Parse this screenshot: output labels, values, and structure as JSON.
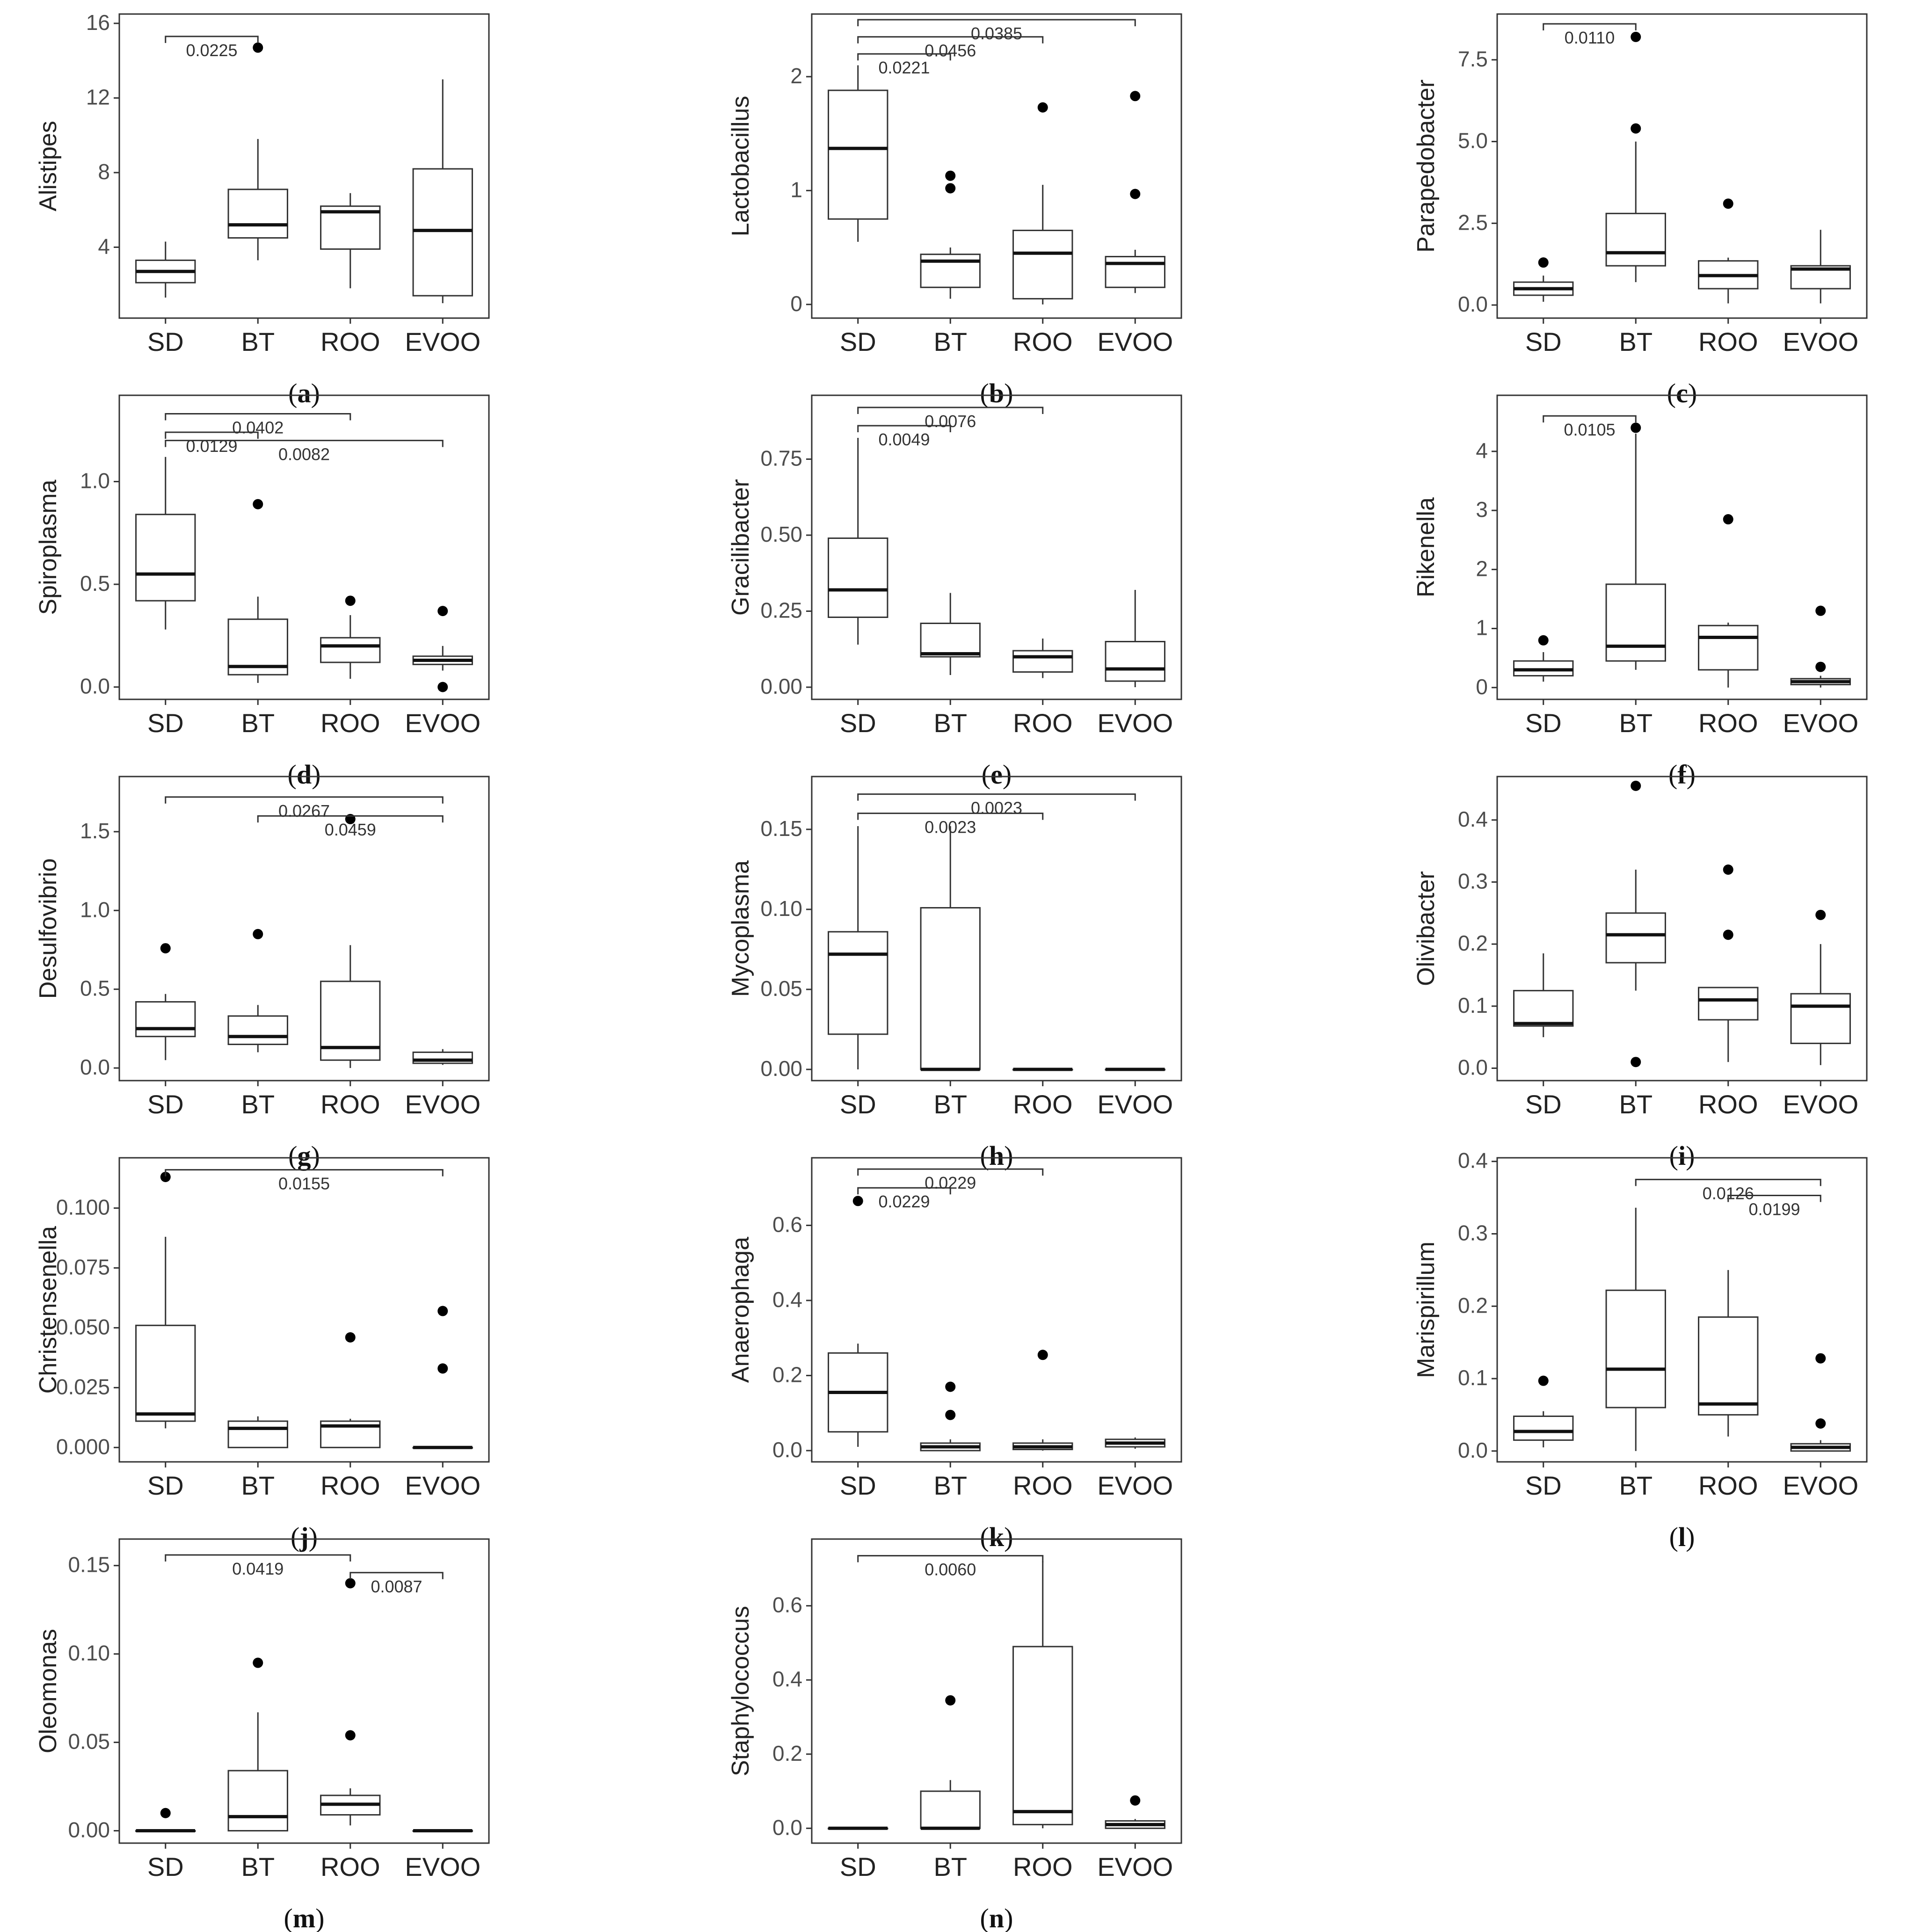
{
  "figure": {
    "categories": [
      "SD",
      "BT",
      "ROO",
      "EVOO"
    ]
  },
  "chart_data": [
    {
      "type": "boxplot",
      "panel": "a",
      "ylabel": "Alistipes",
      "categories": [
        "SD",
        "BT",
        "ROO",
        "EVOO"
      ],
      "ylim": [
        0.2,
        16.5
      ],
      "ticks": [
        4,
        8,
        12,
        16
      ],
      "tick_labels": [
        "4",
        "8",
        "12",
        "16"
      ],
      "boxes": [
        {
          "lw": 1.3,
          "q1": 2.1,
          "median": 2.7,
          "q3": 3.3,
          "hw": 4.3
        },
        {
          "lw": 3.3,
          "q1": 4.5,
          "median": 5.2,
          "q3": 7.1,
          "hw": 9.8
        },
        {
          "lw": 1.8,
          "q1": 3.9,
          "median": 5.9,
          "q3": 6.2,
          "hw": 6.9
        },
        {
          "lw": 1.0,
          "q1": 1.4,
          "median": 4.9,
          "q3": 8.2,
          "hw": 13.0
        }
      ],
      "outliers": [
        {
          "cat": "BT",
          "y": 14.7
        }
      ],
      "brackets": [
        {
          "from": "SD",
          "to": "BT",
          "y": 15.3,
          "label": "0.0225"
        }
      ]
    },
    {
      "type": "boxplot",
      "panel": "b",
      "ylabel": "Lactobacillus",
      "categories": [
        "SD",
        "BT",
        "ROO",
        "EVOO"
      ],
      "ylim": [
        -0.12,
        2.55
      ],
      "ticks": [
        0,
        1,
        2
      ],
      "tick_labels": [
        "0",
        "1",
        "2"
      ],
      "boxes": [
        {
          "lw": 0.55,
          "q1": 0.75,
          "median": 1.37,
          "q3": 1.88,
          "hw": 2.1
        },
        {
          "lw": 0.05,
          "q1": 0.15,
          "median": 0.38,
          "q3": 0.44,
          "hw": 0.5
        },
        {
          "lw": 0.0,
          "q1": 0.05,
          "median": 0.45,
          "q3": 0.65,
          "hw": 1.05
        },
        {
          "lw": 0.1,
          "q1": 0.15,
          "median": 0.36,
          "q3": 0.42,
          "hw": 0.48
        }
      ],
      "outliers": [
        {
          "cat": "BT",
          "y": 1.13
        },
        {
          "cat": "BT",
          "y": 1.02
        },
        {
          "cat": "ROO",
          "y": 1.73
        },
        {
          "cat": "EVOO",
          "y": 1.83
        },
        {
          "cat": "EVOO",
          "y": 0.97
        }
      ],
      "brackets": [
        {
          "from": "SD",
          "to": "BT",
          "y": 2.2,
          "label": "0.0221"
        },
        {
          "from": "SD",
          "to": "ROO",
          "y": 2.35,
          "label": "0.0456"
        },
        {
          "from": "SD",
          "to": "EVOO",
          "y": 2.5,
          "label": "0.0385"
        }
      ]
    },
    {
      "type": "boxplot",
      "panel": "c",
      "ylabel": "Parapedobacter",
      "categories": [
        "SD",
        "BT",
        "ROO",
        "EVOO"
      ],
      "ylim": [
        -0.4,
        8.9
      ],
      "ticks": [
        0,
        2.5,
        5,
        7.5
      ],
      "tick_labels": [
        "0.0",
        "2.5",
        "5.0",
        "7.5"
      ],
      "boxes": [
        {
          "lw": 0.1,
          "q1": 0.3,
          "median": 0.5,
          "q3": 0.7,
          "hw": 0.9
        },
        {
          "lw": 0.7,
          "q1": 1.2,
          "median": 1.6,
          "q3": 2.8,
          "hw": 5.0
        },
        {
          "lw": 0.05,
          "q1": 0.5,
          "median": 0.9,
          "q3": 1.35,
          "hw": 1.45
        },
        {
          "lw": 0.05,
          "q1": 0.5,
          "median": 1.1,
          "q3": 1.2,
          "hw": 2.3
        }
      ],
      "outliers": [
        {
          "cat": "SD",
          "y": 1.3
        },
        {
          "cat": "BT",
          "y": 8.2
        },
        {
          "cat": "BT",
          "y": 5.4
        },
        {
          "cat": "ROO",
          "y": 3.1
        }
      ],
      "brackets": [
        {
          "from": "SD",
          "to": "BT",
          "y": 8.6,
          "label": "0.0110"
        }
      ]
    },
    {
      "type": "boxplot",
      "panel": "d",
      "ylabel": "Spiroplasma",
      "categories": [
        "SD",
        "BT",
        "ROO",
        "EVOO"
      ],
      "ylim": [
        -0.06,
        1.42
      ],
      "ticks": [
        0,
        0.5,
        1
      ],
      "tick_labels": [
        "0.0",
        "0.5",
        "1.0"
      ],
      "boxes": [
        {
          "lw": 0.28,
          "q1": 0.42,
          "median": 0.55,
          "q3": 0.84,
          "hw": 1.12
        },
        {
          "lw": 0.02,
          "q1": 0.06,
          "median": 0.1,
          "q3": 0.33,
          "hw": 0.44
        },
        {
          "lw": 0.04,
          "q1": 0.12,
          "median": 0.2,
          "q3": 0.24,
          "hw": 0.35
        },
        {
          "lw": 0.08,
          "q1": 0.11,
          "median": 0.13,
          "q3": 0.15,
          "hw": 0.2
        }
      ],
      "outliers": [
        {
          "cat": "BT",
          "y": 0.89
        },
        {
          "cat": "ROO",
          "y": 0.42
        },
        {
          "cat": "EVOO",
          "y": 0.37
        },
        {
          "cat": "EVOO",
          "y": 0.0
        }
      ],
      "brackets": [
        {
          "from": "SD",
          "to": "BT",
          "y": 1.24,
          "label": "0.0129"
        },
        {
          "from": "SD",
          "to": "ROO",
          "y": 1.33,
          "label": "0.0402"
        },
        {
          "from": "SD",
          "to": "EVOO",
          "y": 1.2,
          "label": "0.0082"
        }
      ]
    },
    {
      "type": "boxplot",
      "panel": "e",
      "ylabel": "Gracilibacter",
      "categories": [
        "SD",
        "BT",
        "ROO",
        "EVOO"
      ],
      "ylim": [
        -0.04,
        0.96
      ],
      "ticks": [
        0,
        0.25,
        0.5,
        0.75
      ],
      "tick_labels": [
        "0.00",
        "0.25",
        "0.50",
        "0.75"
      ],
      "boxes": [
        {
          "lw": 0.14,
          "q1": 0.23,
          "median": 0.32,
          "q3": 0.49,
          "hw": 0.82
        },
        {
          "lw": 0.04,
          "q1": 0.1,
          "median": 0.11,
          "q3": 0.21,
          "hw": 0.31
        },
        {
          "lw": 0.03,
          "q1": 0.05,
          "median": 0.1,
          "q3": 0.12,
          "hw": 0.16
        },
        {
          "lw": 0.0,
          "q1": 0.02,
          "median": 0.06,
          "q3": 0.15,
          "hw": 0.32
        }
      ],
      "outliers": [],
      "brackets": [
        {
          "from": "SD",
          "to": "BT",
          "y": 0.86,
          "label": "0.0049"
        },
        {
          "from": "SD",
          "to": "ROO",
          "y": 0.92,
          "label": "0.0076"
        }
      ]
    },
    {
      "type": "boxplot",
      "panel": "f",
      "ylabel": "Rikenella",
      "categories": [
        "SD",
        "BT",
        "ROO",
        "EVOO"
      ],
      "ylim": [
        -0.2,
        4.95
      ],
      "ticks": [
        0,
        1,
        2,
        3,
        4
      ],
      "tick_labels": [
        "0",
        "1",
        "2",
        "3",
        "4"
      ],
      "boxes": [
        {
          "lw": 0.1,
          "q1": 0.2,
          "median": 0.3,
          "q3": 0.45,
          "hw": 0.6
        },
        {
          "lw": 0.3,
          "q1": 0.45,
          "median": 0.7,
          "q3": 1.75,
          "hw": 4.3
        },
        {
          "lw": 0.0,
          "q1": 0.3,
          "median": 0.85,
          "q3": 1.05,
          "hw": 1.1
        },
        {
          "lw": 0.0,
          "q1": 0.05,
          "median": 0.1,
          "q3": 0.15,
          "hw": 0.2
        }
      ],
      "outliers": [
        {
          "cat": "SD",
          "y": 0.8
        },
        {
          "cat": "BT",
          "y": 4.4
        },
        {
          "cat": "ROO",
          "y": 2.85
        },
        {
          "cat": "EVOO",
          "y": 1.3
        },
        {
          "cat": "EVOO",
          "y": 0.35
        }
      ],
      "brackets": [
        {
          "from": "SD",
          "to": "BT",
          "y": 4.6,
          "label": "0.0105"
        }
      ]
    },
    {
      "type": "boxplot",
      "panel": "g",
      "ylabel": "Desulfovibrio",
      "categories": [
        "SD",
        "BT",
        "ROO",
        "EVOO"
      ],
      "ylim": [
        -0.08,
        1.85
      ],
      "ticks": [
        0,
        0.5,
        1,
        1.5
      ],
      "tick_labels": [
        "0.0",
        "0.5",
        "1.0",
        "1.5"
      ],
      "boxes": [
        {
          "lw": 0.05,
          "q1": 0.2,
          "median": 0.25,
          "q3": 0.42,
          "hw": 0.47
        },
        {
          "lw": 0.1,
          "q1": 0.15,
          "median": 0.2,
          "q3": 0.33,
          "hw": 0.4
        },
        {
          "lw": 0.0,
          "q1": 0.05,
          "median": 0.13,
          "q3": 0.55,
          "hw": 0.78
        },
        {
          "lw": 0.02,
          "q1": 0.03,
          "median": 0.05,
          "q3": 0.1,
          "hw": 0.12
        }
      ],
      "outliers": [
        {
          "cat": "SD",
          "y": 0.76
        },
        {
          "cat": "BT",
          "y": 0.85
        },
        {
          "cat": "ROO",
          "y": 1.58
        }
      ],
      "brackets": [
        {
          "from": "SD",
          "to": "EVOO",
          "y": 1.72,
          "label": "0.0267"
        },
        {
          "from": "BT",
          "to": "EVOO",
          "y": 1.6,
          "label": "0.0459"
        }
      ]
    },
    {
      "type": "boxplot",
      "panel": "h",
      "ylabel": "Mycoplasma",
      "categories": [
        "SD",
        "BT",
        "ROO",
        "EVOO"
      ],
      "ylim": [
        -0.007,
        0.183
      ],
      "ticks": [
        0,
        0.05,
        0.1,
        0.15
      ],
      "tick_labels": [
        "0.00",
        "0.05",
        "0.10",
        "0.15"
      ],
      "boxes": [
        {
          "lw": 0.0,
          "q1": 0.022,
          "median": 0.072,
          "q3": 0.086,
          "hw": 0.152
        },
        {
          "lw": 0.0,
          "q1": 0.0,
          "median": 0.0,
          "q3": 0.101,
          "hw": 0.152
        },
        {
          "lw": 0.0,
          "q1": 0.0,
          "median": 0.0,
          "q3": 0.0,
          "hw": 0.0
        },
        {
          "lw": 0.0,
          "q1": 0.0,
          "median": 0.0,
          "q3": 0.0,
          "hw": 0.0
        }
      ],
      "outliers": [],
      "brackets": [
        {
          "from": "SD",
          "to": "ROO",
          "y": 0.16,
          "label": "0.0023"
        },
        {
          "from": "SD",
          "to": "EVOO",
          "y": 0.172,
          "label": "0.0023"
        }
      ]
    },
    {
      "type": "boxplot",
      "panel": "i",
      "ylabel": "Olivibacter",
      "categories": [
        "SD",
        "BT",
        "ROO",
        "EVOO"
      ],
      "ylim": [
        -0.02,
        0.47
      ],
      "ticks": [
        0,
        0.1,
        0.2,
        0.3,
        0.4
      ],
      "tick_labels": [
        "0.0",
        "0.1",
        "0.2",
        "0.3",
        "0.4"
      ],
      "boxes": [
        {
          "lw": 0.05,
          "q1": 0.068,
          "median": 0.072,
          "q3": 0.125,
          "hw": 0.185
        },
        {
          "lw": 0.125,
          "q1": 0.17,
          "median": 0.215,
          "q3": 0.25,
          "hw": 0.32
        },
        {
          "lw": 0.01,
          "q1": 0.078,
          "median": 0.11,
          "q3": 0.13,
          "hw": 0.13
        },
        {
          "lw": 0.005,
          "q1": 0.04,
          "median": 0.1,
          "q3": 0.12,
          "hw": 0.2
        }
      ],
      "outliers": [
        {
          "cat": "BT",
          "y": 0.455
        },
        {
          "cat": "BT",
          "y": 0.01
        },
        {
          "cat": "ROO",
          "y": 0.32
        },
        {
          "cat": "ROO",
          "y": 0.215
        },
        {
          "cat": "EVOO",
          "y": 0.247
        }
      ],
      "brackets": []
    },
    {
      "type": "boxplot",
      "panel": "j",
      "ylabel": "Christensenella",
      "categories": [
        "SD",
        "BT",
        "ROO",
        "EVOO"
      ],
      "ylim": [
        -0.006,
        0.121
      ],
      "ticks": [
        0,
        0.025,
        0.05,
        0.075,
        0.1
      ],
      "tick_labels": [
        "0.000",
        "0.025",
        "0.050",
        "0.075",
        "0.100"
      ],
      "boxes": [
        {
          "lw": 0.008,
          "q1": 0.011,
          "median": 0.014,
          "q3": 0.051,
          "hw": 0.088
        },
        {
          "lw": 0.0,
          "q1": 0.0,
          "median": 0.008,
          "q3": 0.011,
          "hw": 0.013
        },
        {
          "lw": 0.0,
          "q1": 0.0,
          "median": 0.009,
          "q3": 0.011,
          "hw": 0.012
        },
        {
          "lw": 0.0,
          "q1": 0.0,
          "median": 0.0,
          "q3": 0.0,
          "hw": 0.0
        }
      ],
      "outliers": [
        {
          "cat": "SD",
          "y": 0.113
        },
        {
          "cat": "ROO",
          "y": 0.046
        },
        {
          "cat": "EVOO",
          "y": 0.057
        },
        {
          "cat": "EVOO",
          "y": 0.033
        }
      ],
      "brackets": [
        {
          "from": "SD",
          "to": "EVOO",
          "y": 0.116,
          "label": "0.0155"
        }
      ]
    },
    {
      "type": "boxplot",
      "panel": "k",
      "ylabel": "Anaerophaga",
      "categories": [
        "SD",
        "BT",
        "ROO",
        "EVOO"
      ],
      "ylim": [
        -0.03,
        0.78
      ],
      "ticks": [
        0,
        0.2,
        0.4,
        0.6
      ],
      "tick_labels": [
        "0.0",
        "0.2",
        "0.4",
        "0.6"
      ],
      "boxes": [
        {
          "lw": 0.01,
          "q1": 0.05,
          "median": 0.155,
          "q3": 0.26,
          "hw": 0.285
        },
        {
          "lw": 0.0,
          "q1": 0.0,
          "median": 0.01,
          "q3": 0.02,
          "hw": 0.03
        },
        {
          "lw": 0.0,
          "q1": 0.003,
          "median": 0.01,
          "q3": 0.02,
          "hw": 0.03
        },
        {
          "lw": 0.005,
          "q1": 0.01,
          "median": 0.02,
          "q3": 0.03,
          "hw": 0.035
        }
      ],
      "outliers": [
        {
          "cat": "SD",
          "y": 0.665
        },
        {
          "cat": "BT",
          "y": 0.17
        },
        {
          "cat": "BT",
          "y": 0.095
        },
        {
          "cat": "ROO",
          "y": 0.255
        }
      ],
      "brackets": [
        {
          "from": "SD",
          "to": "BT",
          "y": 0.7,
          "label": "0.0229"
        },
        {
          "from": "SD",
          "to": "ROO",
          "y": 0.75,
          "label": "0.0229"
        }
      ]
    },
    {
      "type": "boxplot",
      "panel": "l",
      "ylabel": "Marispirillum",
      "categories": [
        "SD",
        "BT",
        "ROO",
        "EVOO"
      ],
      "ylim": [
        -0.015,
        0.405
      ],
      "ticks": [
        0,
        0.1,
        0.2,
        0.3,
        0.4
      ],
      "tick_labels": [
        "0.0",
        "0.1",
        "0.2",
        "0.3",
        "0.4"
      ],
      "boxes": [
        {
          "lw": 0.005,
          "q1": 0.015,
          "median": 0.027,
          "q3": 0.048,
          "hw": 0.055
        },
        {
          "lw": 0.0,
          "q1": 0.06,
          "median": 0.113,
          "q3": 0.222,
          "hw": 0.336
        },
        {
          "lw": 0.02,
          "q1": 0.05,
          "median": 0.065,
          "q3": 0.185,
          "hw": 0.25
        },
        {
          "lw": 0.0,
          "q1": 0.0,
          "median": 0.005,
          "q3": 0.01,
          "hw": 0.015
        }
      ],
      "outliers": [
        {
          "cat": "SD",
          "y": 0.097
        },
        {
          "cat": "EVOO",
          "y": 0.128
        },
        {
          "cat": "EVOO",
          "y": 0.038
        }
      ],
      "brackets": [
        {
          "from": "BT",
          "to": "EVOO",
          "y": 0.375,
          "label": "0.0126"
        },
        {
          "from": "ROO",
          "to": "EVOO",
          "y": 0.353,
          "label": "0.0199"
        }
      ]
    },
    {
      "type": "boxplot",
      "panel": "m",
      "ylabel": "Oleomonas",
      "categories": [
        "SD",
        "BT",
        "ROO",
        "EVOO"
      ],
      "ylim": [
        -0.007,
        0.165
      ],
      "ticks": [
        0,
        0.05,
        0.1,
        0.15
      ],
      "tick_labels": [
        "0.00",
        "0.05",
        "0.10",
        "0.15"
      ],
      "boxes": [
        {
          "lw": 0.0,
          "q1": 0.0,
          "median": 0.0,
          "q3": 0.0,
          "hw": 0.0
        },
        {
          "lw": 0.0,
          "q1": 0.0,
          "median": 0.008,
          "q3": 0.034,
          "hw": 0.067
        },
        {
          "lw": 0.003,
          "q1": 0.009,
          "median": 0.015,
          "q3": 0.02,
          "hw": 0.024
        },
        {
          "lw": 0.0,
          "q1": 0.0,
          "median": 0.0,
          "q3": 0.0,
          "hw": 0.0
        }
      ],
      "outliers": [
        {
          "cat": "SD",
          "y": 0.01
        },
        {
          "cat": "BT",
          "y": 0.095
        },
        {
          "cat": "ROO",
          "y": 0.14
        },
        {
          "cat": "ROO",
          "y": 0.054
        }
      ],
      "brackets": [
        {
          "from": "SD",
          "to": "ROO",
          "y": 0.156,
          "label": "0.0419"
        },
        {
          "from": "ROO",
          "to": "EVOO",
          "y": 0.146,
          "label": "0.0087"
        }
      ]
    },
    {
      "type": "boxplot",
      "panel": "n",
      "ylabel": "Staphylococcus",
      "categories": [
        "SD",
        "BT",
        "ROO",
        "EVOO"
      ],
      "ylim": [
        -0.04,
        0.78
      ],
      "ticks": [
        0,
        0.2,
        0.4,
        0.6
      ],
      "tick_labels": [
        "0.0",
        "0.2",
        "0.4",
        "0.6"
      ],
      "boxes": [
        {
          "lw": 0.0,
          "q1": 0.0,
          "median": 0.0,
          "q3": 0.0,
          "hw": 0.0
        },
        {
          "lw": 0.0,
          "q1": 0.0,
          "median": 0.0,
          "q3": 0.1,
          "hw": 0.13
        },
        {
          "lw": 0.0,
          "q1": 0.01,
          "median": 0.045,
          "q3": 0.49,
          "hw": 0.72
        },
        {
          "lw": 0.0,
          "q1": 0.0,
          "median": 0.01,
          "q3": 0.02,
          "hw": 0.025
        }
      ],
      "outliers": [
        {
          "cat": "BT",
          "y": 0.345
        },
        {
          "cat": "EVOO",
          "y": 0.075
        }
      ],
      "brackets": [
        {
          "from": "SD",
          "to": "ROO",
          "y": 0.735,
          "label": "0.0060"
        }
      ]
    }
  ]
}
